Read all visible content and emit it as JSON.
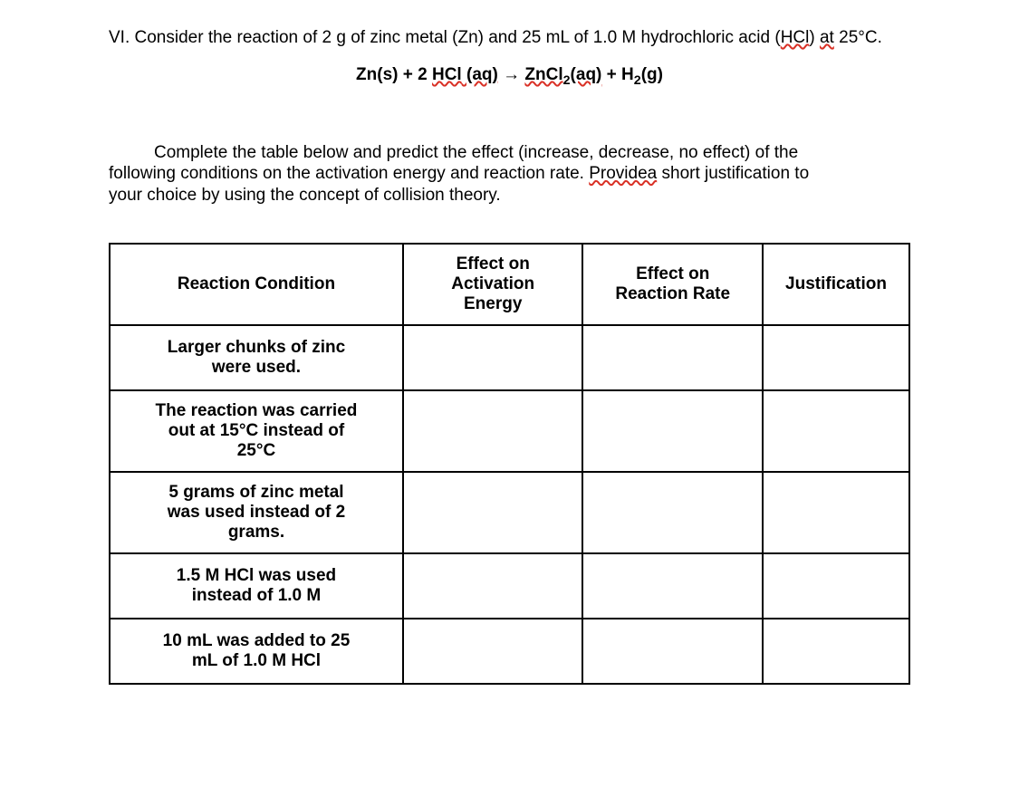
{
  "intro": {
    "prefix": "VI. Consider the reaction of 2 g of zinc metal (Zn) and 25 mL of 1.0 M hydrochloric acid (",
    "hcl_wavy": "HCl",
    "paren_close": ") ",
    "at_wavy": "at",
    "temp": " 25°C."
  },
  "equation": {
    "zn": "Zn(s) + 2 ",
    "hcl_wavy": "HCl",
    "aq1_wavy": " (aq)",
    "arrow": " → ",
    "zncl_wavy": "ZnCl",
    "sub2": "2",
    "aq2_wavy": "(aq)",
    "plus": " + H",
    "subH2": "2",
    "g": "(g)"
  },
  "instructions": {
    "line1a": "Complete the table below and predict the effect (increase, decrease, no effect) of the",
    "line2a": "following conditions on the activation energy and reaction rate. ",
    "provide_wavy": "Providea",
    "line2b": " short justification to",
    "line3": "your choice by using the concept of collision theory."
  },
  "table": {
    "headers": {
      "condition": "Reaction Condition",
      "ae_l1": "Effect on",
      "ae_l2": "Activation",
      "ae_l3": "Energy",
      "rate_l1": "Effect on",
      "rate_l2": "Reaction Rate",
      "just": "Justification"
    },
    "rows": [
      {
        "c1": "Larger chunks of zinc",
        "c2": "were used."
      },
      {
        "c1": "The reaction was carried",
        "c2": "out at 15°C instead of",
        "c3": "25°C"
      },
      {
        "c1": "5 grams of zinc metal",
        "c2": "was used instead of 2",
        "c3": "grams."
      },
      {
        "c1": "1.5 M HCl was used",
        "c2": "instead of 1.0 M"
      },
      {
        "c1": "10 mL was added to 25",
        "c2": "mL of 1.0 M HCl"
      }
    ]
  }
}
